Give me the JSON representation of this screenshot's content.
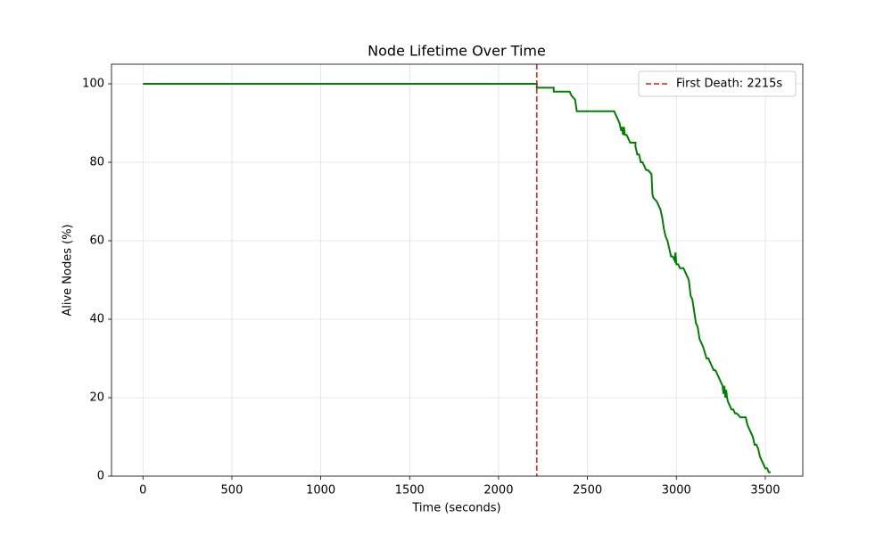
{
  "chart_data": {
    "type": "line",
    "title": "Node Lifetime Over Time",
    "xlabel": "Time (seconds)",
    "ylabel": "Alive Nodes (%)",
    "x": [
      0,
      2215,
      2215,
      2310,
      2310,
      2400,
      2410,
      2430,
      2440,
      2650,
      2660,
      2670,
      2680,
      2690,
      2695,
      2700,
      2705,
      2710,
      2720,
      2730,
      2740,
      2770,
      2770,
      2780,
      2790,
      2800,
      2810,
      2820,
      2830,
      2840,
      2860,
      2865,
      2870,
      2890,
      2900,
      2910,
      2920,
      2930,
      2940,
      2950,
      2960,
      2970,
      2980,
      2990,
      2995,
      3000,
      3010,
      3020,
      3040,
      3050,
      3060,
      3070,
      3080,
      3090,
      3100,
      3110,
      3120,
      3130,
      3140,
      3150,
      3170,
      3180,
      3190,
      3200,
      3210,
      3220,
      3230,
      3240,
      3250,
      3260,
      3265,
      3270,
      3275,
      3280,
      3285,
      3290,
      3300,
      3310,
      3320,
      3330,
      3340,
      3360,
      3380,
      3390,
      3400,
      3410,
      3420,
      3430,
      3440,
      3450,
      3460,
      3470,
      3480,
      3490,
      3500,
      3510,
      3520,
      3530
    ],
    "values": [
      100,
      100,
      99,
      99,
      98,
      98,
      97,
      96,
      93,
      93,
      92,
      91,
      90,
      88,
      89,
      87,
      89,
      87,
      87,
      86,
      85,
      85,
      84,
      82,
      82,
      80,
      80,
      79,
      78,
      78,
      77,
      72,
      71,
      70,
      69,
      68,
      66,
      63,
      61,
      60,
      58,
      56,
      56,
      55,
      57,
      54,
      54,
      53,
      53,
      52,
      51,
      50,
      46,
      45,
      42,
      39,
      38,
      35,
      34,
      33,
      30,
      30,
      29,
      28,
      27,
      27,
      26,
      25,
      24,
      23,
      21,
      23,
      20,
      22,
      20,
      19,
      18,
      17,
      17,
      16,
      16,
      15,
      15,
      15,
      13,
      12,
      11,
      10,
      8,
      8,
      7,
      5,
      4,
      3,
      2,
      2,
      1,
      1
    ],
    "color": "#008000",
    "vline": {
      "x": 2215,
      "label": "First Death: 2215s",
      "color": "#e31a1c"
    },
    "xlim": [
      -177,
      3711
    ],
    "ylim": [
      0,
      105
    ],
    "xticks": [
      0,
      500,
      1000,
      1500,
      2000,
      2500,
      3000,
      3500
    ],
    "yticks": [
      0,
      20,
      40,
      60,
      80,
      100
    ],
    "grid": true,
    "legend": "upper right"
  }
}
